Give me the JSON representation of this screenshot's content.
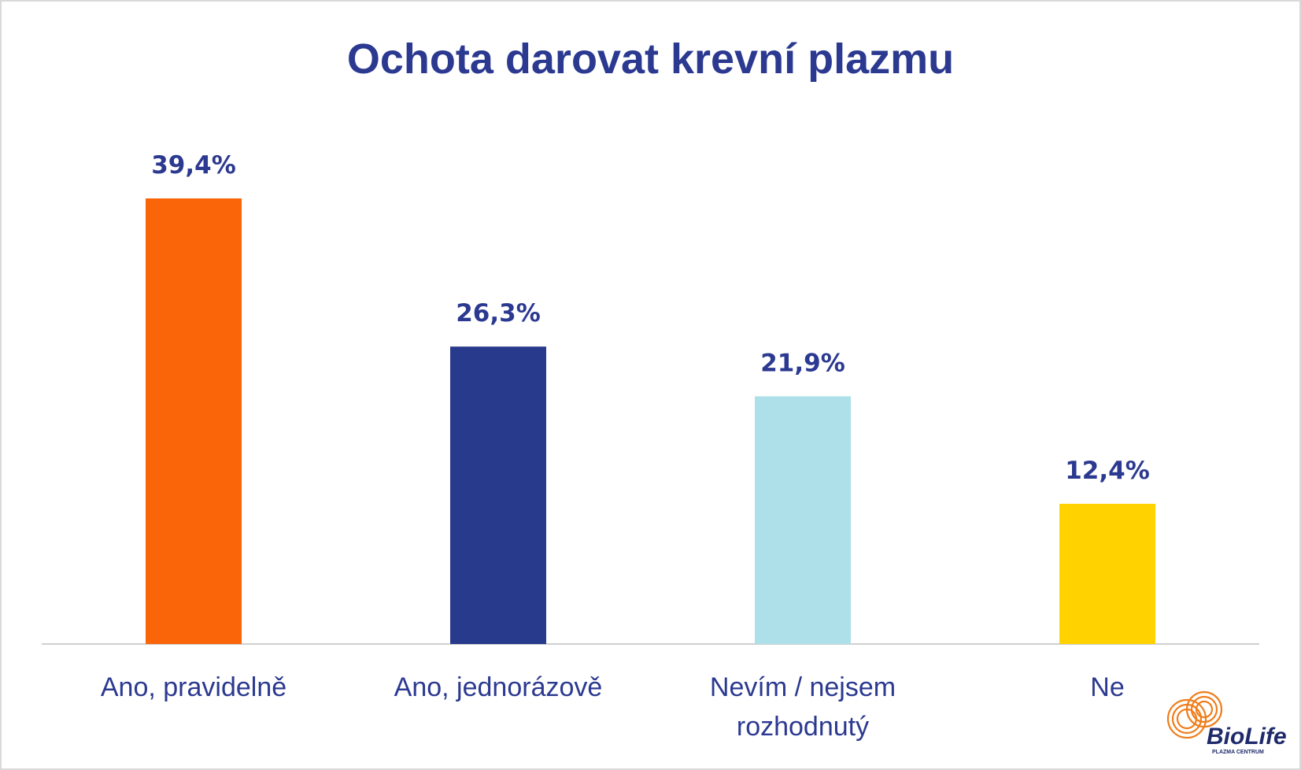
{
  "chart_data": {
    "type": "bar",
    "title": "Ochota darovat krevní plazmu",
    "categories": [
      "Ano, pravidelně",
      "Ano, jednorázově",
      "Nevím / nejsem rozhodnutý",
      "Ne"
    ],
    "category_lines": [
      [
        "Ano, pravidelně"
      ],
      [
        "Ano, jednorázově"
      ],
      [
        "Nevím / nejsem",
        "rozhodnutý"
      ],
      [
        "Ne"
      ]
    ],
    "values": [
      39.4,
      26.3,
      21.9,
      12.4
    ],
    "data_labels": [
      "39,4%",
      "26,3%",
      "21,9%",
      "12,4%"
    ],
    "colors": [
      "#F96508",
      "#283A8C",
      "#AEE0EA",
      "#FFD200"
    ],
    "xlabel": "",
    "ylabel": "",
    "ylim": [
      0,
      40
    ],
    "grid": false,
    "legend": "none"
  },
  "logo": {
    "name": "BioLife",
    "subtitle": "PLAZMA CENTRUM"
  }
}
